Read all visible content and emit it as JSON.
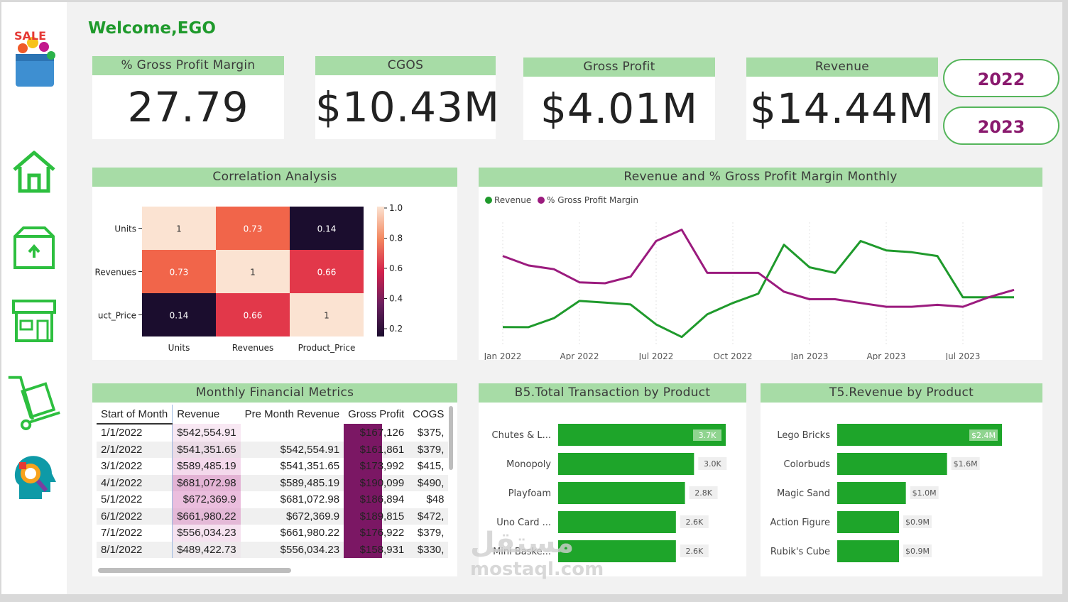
{
  "header": {
    "welcome": "Welcome,EGO"
  },
  "kpis": [
    {
      "label": "% Gross Profit Margin",
      "value": "27.79"
    },
    {
      "label": "CGOS",
      "value": "$10.43M"
    },
    {
      "label": "Gross Profit",
      "value": "$4.01M"
    },
    {
      "label": "Revenue",
      "value": "$14.44M"
    }
  ],
  "year_filter": {
    "y2022": "2022",
    "y2023": "2023"
  },
  "sidebar": {
    "items": [
      "sale-logo",
      "home",
      "box",
      "store",
      "cart",
      "analytics"
    ]
  },
  "correlation": {
    "title": "Correlation Analysis",
    "rows": [
      "Units",
      "Revenues",
      "uct_Price"
    ],
    "cols": [
      "Units",
      "Revenues",
      "Product_Price"
    ],
    "values": [
      [
        "1",
        "0.73",
        "0.14"
      ],
      [
        "0.73",
        "1",
        "0.66"
      ],
      [
        "0.14",
        "0.66",
        "1"
      ]
    ],
    "colorbar": [
      "1.0",
      "0.8",
      "0.6",
      "0.4",
      "0.2"
    ]
  },
  "monthly_chart": {
    "title": "Revenue and % Gross Profit Margin Monthly",
    "legend": [
      "Revenue",
      "% Gross Profit Margin"
    ],
    "xticks": [
      "Jan 2022",
      "Apr 2022",
      "Jul 2022",
      "Oct 2022",
      "Jan 2023",
      "Apr 2023",
      "Jul 2023"
    ]
  },
  "chart_data": [
    {
      "type": "line",
      "title": "Revenue and % Gross Profit Margin Monthly",
      "x": [
        "Jan 2022",
        "Feb 2022",
        "Mar 2022",
        "Apr 2022",
        "May 2022",
        "Jun 2022",
        "Jul 2022",
        "Aug 2022",
        "Sep 2022",
        "Oct 2022",
        "Nov 2022",
        "Dec 2022",
        "Jan 2023",
        "Feb 2023",
        "Mar 2023",
        "Apr 2023",
        "May 2023",
        "Jun 2023",
        "Jul 2023",
        "Aug 2023",
        "Sep 2023"
      ],
      "series": [
        {
          "name": "Revenue",
          "color": "#1f9a2c",
          "values": [
            0.542,
            0.541,
            0.589,
            0.681,
            0.672,
            0.662,
            0.556,
            0.489,
            0.61,
            0.67,
            0.72,
            0.98,
            0.86,
            0.83,
            1.0,
            0.95,
            0.94,
            0.92,
            0.7,
            0.7,
            0.7
          ]
        },
        {
          "name": "% Gross Profit Margin",
          "color": "#9b1b7e",
          "values": [
            0.92,
            0.87,
            0.85,
            0.78,
            0.775,
            0.81,
            1.0,
            1.06,
            0.83,
            0.83,
            0.83,
            0.73,
            0.69,
            0.69,
            0.67,
            0.65,
            0.65,
            0.66,
            0.65,
            0.7,
            0.74
          ]
        }
      ]
    },
    {
      "type": "bar",
      "title": "B5.Total Transaction by Product",
      "categories": [
        "Chutes & L...",
        "Monopoly",
        "Playfoam",
        "Uno Card ...",
        "Mini Baske..."
      ],
      "values": [
        3.7,
        3.0,
        2.8,
        2.6,
        2.6
      ],
      "labels": [
        "3.7K",
        "3.0K",
        "2.8K",
        "2.6K",
        "2.6K"
      ]
    },
    {
      "type": "bar",
      "title": "T5.Revenue by Product",
      "categories": [
        "Lego Bricks",
        "Colorbuds",
        "Magic Sand",
        "Action Figure",
        "Rubik's Cube"
      ],
      "values": [
        2.4,
        1.6,
        1.0,
        0.9,
        0.9
      ],
      "labels": [
        "$2.4M",
        "$1.6M",
        "$1.0M",
        "$0.9M",
        "$0.9M"
      ]
    }
  ],
  "metrics_table": {
    "title": "Monthly Financial Metrics",
    "columns": [
      "Start of Month",
      "Revenue",
      "Pre Month Revenue",
      "Gross Profit",
      "COGS"
    ],
    "rows": [
      [
        "1/1/2022",
        "$542,554.91",
        "",
        "$167,126",
        "$375,"
      ],
      [
        "2/1/2022",
        "$541,351.65",
        "$542,554.91",
        "$161,861",
        "$379,"
      ],
      [
        "3/1/2022",
        "$589,485.19",
        "$541,351.65",
        "$173,992",
        "$415,"
      ],
      [
        "4/1/2022",
        "$681,072.98",
        "$589,485.19",
        "$190,099",
        "$490,"
      ],
      [
        "5/1/2022",
        "$672,369.9",
        "$681,072.98",
        "$186,894",
        "$48"
      ],
      [
        "6/1/2022",
        "$661,980.22",
        "$672,369.9",
        "$189,815",
        "$472,"
      ],
      [
        "7/1/2022",
        "$556,034.23",
        "$661,980.22",
        "$176,922",
        "$379,"
      ],
      [
        "8/1/2022",
        "$489,422.73",
        "$556,034.23",
        "$158,931",
        "$330,"
      ]
    ]
  },
  "watermark": {
    "line1": "مستقل",
    "line2": "mostaql.com"
  }
}
